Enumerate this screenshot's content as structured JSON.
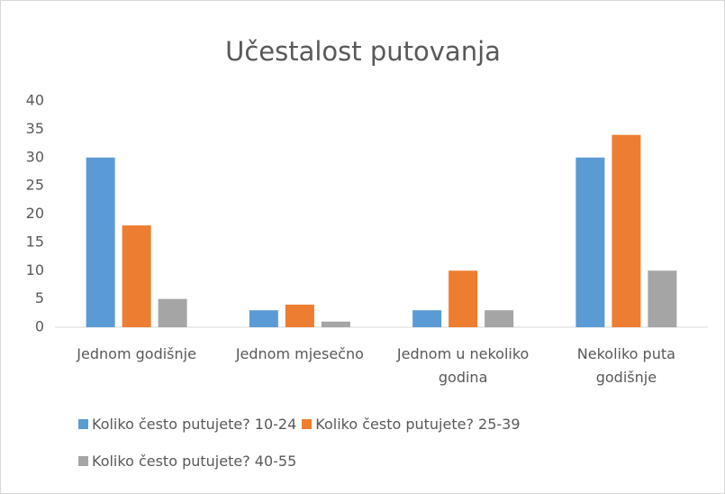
{
  "chart_data": {
    "type": "bar",
    "title": "Učestalost putovanja",
    "categories": [
      "Jednom godišnje",
      "Jednom mjesečno",
      "Jednom u nekoliko godina",
      "Nekoliko puta godišnje"
    ],
    "series": [
      {
        "name": "Koliko često putujete? 10-24",
        "color": "#5b9bd5",
        "values": [
          30,
          3,
          3,
          30
        ]
      },
      {
        "name": "Koliko često putujete? 25-39",
        "color": "#ed7d31",
        "values": [
          18,
          4,
          10,
          34
        ]
      },
      {
        "name": "Koliko često putujete? 40-55",
        "color": "#a5a5a5",
        "values": [
          5,
          1,
          3,
          10
        ]
      }
    ],
    "ylim": [
      0,
      40
    ],
    "yticks": [
      0,
      5,
      10,
      15,
      20,
      25,
      30,
      35,
      40
    ],
    "grid": false,
    "legend": "bottom"
  }
}
